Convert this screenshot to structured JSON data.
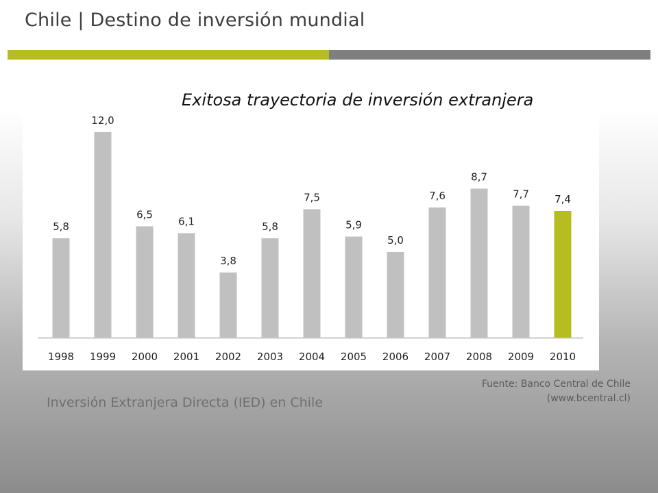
{
  "header": {
    "title": "Chile | Destino de inversión mundial"
  },
  "colors": {
    "accent": "#b5be1e",
    "bar": "#c0c0c0",
    "rule_gray": "#7f7f7f"
  },
  "chart_data": {
    "type": "bar",
    "title": "Exitosa trayectoria de inversión extranjera",
    "categories": [
      "1998",
      "1999",
      "2000",
      "2001",
      "2002",
      "2003",
      "2004",
      "2005",
      "2006",
      "2007",
      "2008",
      "2009",
      "2010"
    ],
    "values": [
      5.8,
      12.0,
      6.5,
      6.1,
      3.8,
      5.8,
      7.5,
      5.9,
      5.0,
      7.6,
      8.7,
      7.7,
      7.4
    ],
    "data_labels": [
      "5,8",
      "12,0",
      "6,5",
      "6,1",
      "3,8",
      "5,8",
      "7,5",
      "5,9",
      "5,0",
      "7,6",
      "8,7",
      "7,7",
      "7,4"
    ],
    "highlight_category": "2010",
    "ylim": [
      0,
      12.7
    ],
    "grid": false,
    "xlabel": "",
    "ylabel": ""
  },
  "footer": {
    "source_line1": "Fuente: Banco Central de Chile",
    "source_line2": "(www.bcentral.cl)",
    "caption": "Inversión Extranjera Directa (IED) en Chile"
  }
}
